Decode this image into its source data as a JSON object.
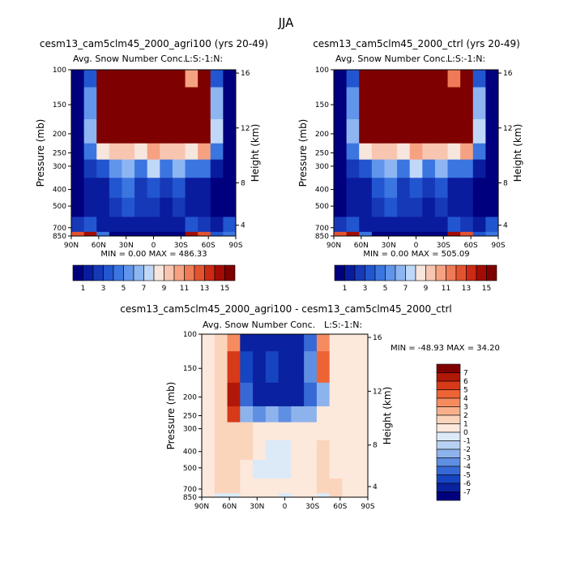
{
  "figure": {
    "main_title": "JJA",
    "panels": [
      {
        "title": "cesm13_cam5clm45_2000_agri100 (yrs 20-49)",
        "subtitle": "Avg. Snow Number Conc.",
        "units": "L:S:-1:N:",
        "stats": "MIN =    0.00   MAX = 486.33"
      },
      {
        "title": "cesm13_cam5clm45_2000_ctrl (yrs 20-49)",
        "subtitle": "Avg. Snow Number Conc.",
        "units": "L:S:-1:N:",
        "stats": "MIN =    0.00   MAX = 505.09"
      },
      {
        "title": "cesm13_cam5clm45_2000_agri100 - cesm13_cam5clm45_2000_ctrl",
        "subtitle": "Avg. Snow Number Conc.",
        "units": "L:S:-1:N:",
        "stats": "MIN = -48.93   MAX =  34.20"
      }
    ],
    "ylabel_left": "Pressure (mb)",
    "ylabel_right": "Height (km)",
    "pressure_ticks": [
      "100",
      "150",
      "200",
      "250",
      "300",
      "400",
      "500",
      "700",
      "850"
    ],
    "height_ticks": [
      "16",
      "12",
      "8",
      "4"
    ],
    "lat_ticks": [
      "90N",
      "60N",
      "30N",
      "0",
      "30S",
      "60S",
      "90S"
    ],
    "colorbar_levels": [
      "1",
      "3",
      "5",
      "7",
      "9",
      "11",
      "13",
      "15"
    ],
    "diff_colorbar_levels": [
      "7",
      "6",
      "5",
      "4",
      "3",
      "2",
      "1",
      "0",
      "-1",
      "-2",
      "-3",
      "-4",
      "-5",
      "-6",
      "-7"
    ],
    "colors": {
      "seq": [
        "#00007f",
        "#0a1c9e",
        "#1639b8",
        "#2256d0",
        "#3b75e0",
        "#6195eb",
        "#8cb5f2",
        "#c0d8f8",
        "#f7e6dd",
        "#f8c6b0",
        "#f6a282",
        "#ef7a58",
        "#e45330",
        "#cc2a14",
        "#a30c04",
        "#7f0000"
      ],
      "diff": [
        "#7f0000",
        "#b01808",
        "#d63a18",
        "#ee6334",
        "#f58b5e",
        "#f8b08c",
        "#fbd4bc",
        "#fde8dc",
        "#dceaf8",
        "#b7d0f3",
        "#8db3ec",
        "#5f8fe2",
        "#3669d6",
        "#1744c0",
        "#0a22a0",
        "#00007f"
      ]
    }
  },
  "chart_data": [
    {
      "type": "heatmap",
      "title": "cesm13_cam5clm45_2000_agri100 (yrs 20-49)",
      "subtitle": "Avg. Snow Number Conc.",
      "x": [
        -90,
        -75,
        -60,
        -45,
        -30,
        -15,
        0,
        15,
        30,
        45,
        60,
        75,
        90
      ],
      "y_pressure_mb": [
        100,
        150,
        200,
        250,
        300,
        400,
        500,
        700,
        850
      ],
      "z": [
        [
          0,
          3,
          16,
          16,
          16,
          16,
          16,
          16,
          16,
          10,
          16,
          3,
          0
        ],
        [
          0,
          5,
          16,
          16,
          16,
          16,
          16,
          16,
          16,
          16,
          16,
          6,
          0
        ],
        [
          0,
          6,
          16,
          16,
          16,
          16,
          16,
          16,
          16,
          16,
          16,
          7,
          0
        ],
        [
          0,
          4,
          8,
          9,
          9,
          8,
          10,
          9,
          9,
          8,
          10,
          4,
          0
        ],
        [
          0,
          2,
          3,
          5,
          6,
          4,
          7,
          4,
          6,
          4,
          4,
          1,
          0
        ],
        [
          0,
          1,
          1,
          3,
          4,
          2,
          3,
          2,
          3,
          1,
          1,
          0,
          0
        ],
        [
          0,
          1,
          1,
          2,
          3,
          2,
          2,
          1,
          2,
          1,
          1,
          0,
          0
        ],
        [
          2,
          3,
          1,
          1,
          1,
          1,
          1,
          1,
          1,
          3,
          2,
          1,
          3
        ],
        [
          12,
          14,
          4,
          0,
          0,
          0,
          0,
          0,
          0,
          14,
          12,
          3,
          4
        ]
      ],
      "zmin": 0.0,
      "zmax": 486.33,
      "xlabel": "",
      "ylabel": "Pressure (mb)",
      "ylabel_right": "Height (km)"
    },
    {
      "type": "heatmap",
      "title": "cesm13_cam5clm45_2000_ctrl (yrs 20-49)",
      "subtitle": "Avg. Snow Number Conc.",
      "x": [
        -90,
        -75,
        -60,
        -45,
        -30,
        -15,
        0,
        15,
        30,
        45,
        60,
        75,
        90
      ],
      "y_pressure_mb": [
        100,
        150,
        200,
        250,
        300,
        400,
        500,
        700,
        850
      ],
      "z": [
        [
          0,
          3,
          16,
          16,
          16,
          16,
          16,
          16,
          16,
          11,
          16,
          3,
          0
        ],
        [
          0,
          5,
          16,
          16,
          16,
          16,
          16,
          16,
          16,
          16,
          16,
          6,
          0
        ],
        [
          0,
          6,
          16,
          16,
          16,
          16,
          16,
          16,
          16,
          16,
          16,
          7,
          0
        ],
        [
          0,
          4,
          8,
          9,
          9,
          8,
          10,
          9,
          9,
          8,
          10,
          4,
          0
        ],
        [
          0,
          2,
          3,
          5,
          6,
          4,
          7,
          4,
          6,
          4,
          4,
          1,
          0
        ],
        [
          0,
          1,
          1,
          3,
          4,
          2,
          3,
          2,
          3,
          1,
          1,
          0,
          0
        ],
        [
          0,
          1,
          1,
          2,
          3,
          2,
          2,
          1,
          2,
          1,
          1,
          0,
          0
        ],
        [
          2,
          3,
          1,
          1,
          1,
          1,
          1,
          1,
          1,
          3,
          2,
          1,
          3
        ],
        [
          12,
          14,
          4,
          0,
          0,
          0,
          0,
          0,
          0,
          14,
          12,
          3,
          4
        ]
      ],
      "zmin": 0.0,
      "zmax": 505.09,
      "xlabel": "",
      "ylabel": "Pressure (mb)",
      "ylabel_right": "Height (km)"
    },
    {
      "type": "heatmap",
      "title": "cesm13_cam5clm45_2000_agri100 - cesm13_cam5clm45_2000_ctrl",
      "subtitle": "Avg. Snow Number Conc.",
      "x": [
        -90,
        -75,
        -60,
        -45,
        -30,
        -15,
        0,
        15,
        30,
        45,
        60,
        75,
        90
      ],
      "y_pressure_mb": [
        100,
        150,
        200,
        250,
        300,
        400,
        500,
        700,
        850
      ],
      "z": [
        [
          0,
          1,
          3,
          -7,
          -7,
          -7,
          -7,
          -7,
          -5,
          3,
          0,
          0,
          0
        ],
        [
          0,
          1,
          5,
          -6,
          -7,
          -6,
          -7,
          -7,
          -4,
          4,
          0,
          0,
          0
        ],
        [
          0,
          1,
          6,
          -5,
          -7,
          -7,
          -7,
          -7,
          -5,
          -3,
          0,
          0,
          0
        ],
        [
          0,
          1,
          5,
          -3,
          -4,
          -3,
          -4,
          -3,
          -3,
          0,
          0,
          0,
          0
        ],
        [
          0,
          1,
          1,
          1,
          0,
          0,
          0,
          0,
          0,
          0,
          0,
          0,
          0
        ],
        [
          0,
          1,
          1,
          1,
          0,
          -1,
          -1,
          0,
          0,
          1,
          0,
          0,
          0
        ],
        [
          0,
          1,
          1,
          0,
          -1,
          -1,
          -1,
          0,
          0,
          1,
          0,
          0,
          0
        ],
        [
          0,
          1,
          1,
          0,
          0,
          0,
          0,
          0,
          0,
          1,
          1,
          0,
          0
        ],
        [
          0,
          -1,
          -1,
          0,
          0,
          0,
          -1,
          0,
          0,
          -1,
          1,
          0,
          0
        ]
      ],
      "zmin": -48.93,
      "zmax": 34.2,
      "xlabel": "",
      "ylabel": "Pressure (mb)",
      "ylabel_right": "Height (km)"
    }
  ]
}
